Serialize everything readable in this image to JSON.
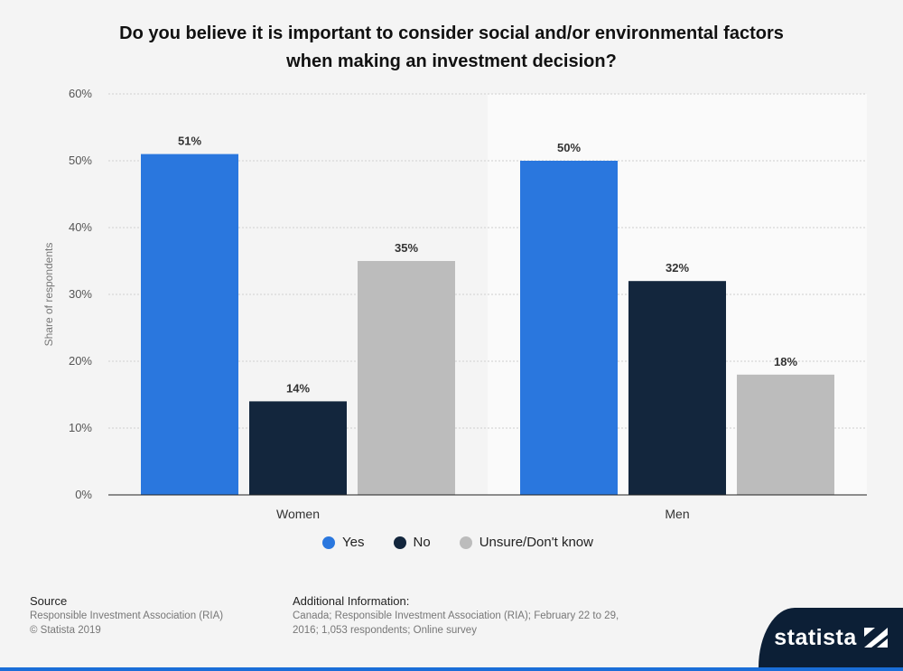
{
  "title": {
    "line1": "Do you believe it is important to consider social and/or environmental factors",
    "line2": "when making an investment decision?"
  },
  "chart_data": {
    "type": "bar",
    "categories": [
      "Women",
      "Men"
    ],
    "series": [
      {
        "name": "Yes",
        "values": [
          51,
          50
        ],
        "color": "#2a77de"
      },
      {
        "name": "No",
        "values": [
          14,
          32
        ],
        "color": "#13263d"
      },
      {
        "name": "Unsure/Don't know",
        "values": [
          35,
          18
        ],
        "color": "#bcbcbc"
      }
    ],
    "value_labels": [
      [
        "51%",
        "50%"
      ],
      [
        "14%",
        "32%"
      ],
      [
        "35%",
        "18%"
      ]
    ],
    "yticks": [
      "0%",
      "10%",
      "20%",
      "30%",
      "40%",
      "50%",
      "60%"
    ],
    "ylim": [
      0,
      60
    ],
    "ylabel": "Share of respondents",
    "xlabel": "",
    "legend_position": "bottom"
  },
  "footer": {
    "source_heading": "Source",
    "source_line1": "Responsible Investment Association (RIA)",
    "source_line2": "© Statista 2019",
    "info_heading": "Additional Information:",
    "info_text": "Canada; Responsible Investment Association (RIA); February 22 to 29, 2016; 1,053 respondents; Online survey"
  },
  "logo": {
    "text": "statista"
  }
}
